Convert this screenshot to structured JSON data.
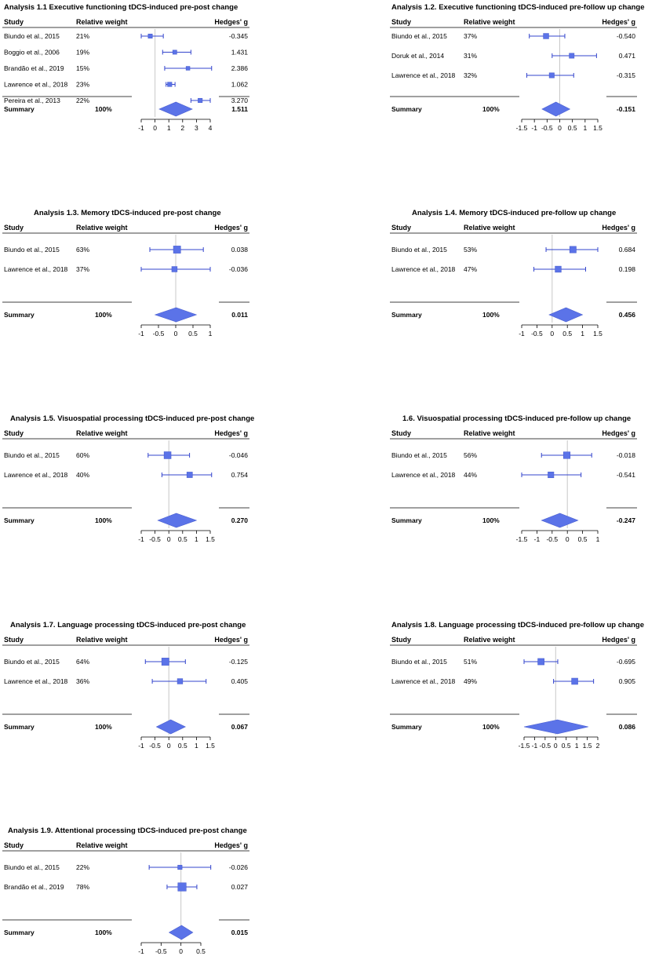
{
  "figure": {
    "headers": {
      "study": "Study",
      "weight": "Relative weight",
      "effect": "Hedges' g"
    },
    "summary_label": "Summary",
    "summary_weight": "100%",
    "colors": {
      "marker": "#5b73e8",
      "marker_edge": "#4a5fd0",
      "line": "#3344cc",
      "ref_line": "#c8c8c8",
      "rule": "#000000"
    }
  },
  "chart_data": [
    {
      "type": "forest",
      "title": "Analysis 1.1 Executive functioning tDCS-induced pre-post change",
      "studies": [
        {
          "label": "Biundo et al., 2015",
          "weight": "21%",
          "g_text": "-0.345",
          "g": -0.345,
          "ci": [
            -1.0,
            0.6
          ]
        },
        {
          "label": "Boggio et al., 2006",
          "weight": "19%",
          "g_text": "1.431",
          "g": 1.431,
          "ci": [
            0.55,
            2.6
          ]
        },
        {
          "label": "Brandão et al., 2019",
          "weight": "15%",
          "g_text": "2.386",
          "g": 2.386,
          "ci": [
            0.7,
            4.1
          ]
        },
        {
          "label": "Lawrence et al., 2018",
          "weight": "23%",
          "g_text": "1.062",
          "g": 1.062,
          "ci": [
            0.8,
            1.45
          ]
        },
        {
          "label": "Pereira et al., 2013",
          "weight": "22%",
          "g_text": "3.270",
          "g": 3.27,
          "ci": [
            2.6,
            4.0
          ]
        }
      ],
      "summary": {
        "g_text": "1.511",
        "g": 1.511,
        "ci": [
          0.3,
          2.7
        ]
      },
      "xlim": [
        -1,
        4
      ],
      "ticks": [
        "-1",
        "0",
        "1",
        "2",
        "3",
        "4"
      ],
      "tick_values": [
        -1,
        0,
        1,
        2,
        3,
        4
      ]
    },
    {
      "type": "forest",
      "title": "Analysis 1.2. Executive functioning tDCS-induced pre-follow up change",
      "studies": [
        {
          "label": "Biundo et al., 2015",
          "weight": "37%",
          "g_text": "-0.540",
          "g": -0.54,
          "ci": [
            -1.2,
            0.2
          ]
        },
        {
          "label": "Doruk et al., 2014",
          "weight": "31%",
          "g_text": "0.471",
          "g": 0.471,
          "ci": [
            -0.3,
            1.45
          ]
        },
        {
          "label": "Lawrence et al., 2018",
          "weight": "32%",
          "g_text": "-0.315",
          "g": -0.315,
          "ci": [
            -1.3,
            0.55
          ]
        }
      ],
      "summary": {
        "g_text": "-0.151",
        "g": -0.151,
        "ci": [
          -0.7,
          0.4
        ]
      },
      "xlim": [
        -1.5,
        1.5
      ],
      "ticks": [
        "-1.5",
        "-1",
        "-0.5",
        "0",
        "0.5",
        "1",
        "1.5"
      ],
      "tick_values": [
        -1.5,
        -1,
        -0.5,
        0,
        0.5,
        1,
        1.5
      ]
    },
    {
      "type": "forest",
      "title": "Analysis 1.3. Memory tDCS-induced pre-post change",
      "studies": [
        {
          "label": "Biundo et al., 2015",
          "weight": "63%",
          "g_text": "0.038",
          "g": 0.038,
          "ci": [
            -0.75,
            0.8
          ]
        },
        {
          "label": "Lawrence et al., 2018",
          "weight": "37%",
          "g_text": "-0.036",
          "g": -0.036,
          "ci": [
            -1.0,
            1.0
          ]
        }
      ],
      "summary": {
        "g_text": "0.011",
        "g": 0.011,
        "ci": [
          -0.6,
          0.6
        ]
      },
      "xlim": [
        -1,
        1
      ],
      "ticks": [
        "-1",
        "-0.5",
        "0",
        "0.5",
        "1"
      ],
      "tick_values": [
        -1,
        -0.5,
        0,
        0.5,
        1
      ]
    },
    {
      "type": "forest",
      "title": "Analysis 1.4. Memory tDCS-induced pre-follow up change",
      "studies": [
        {
          "label": "Biundo et al., 2015",
          "weight": "53%",
          "g_text": "0.684",
          "g": 0.684,
          "ci": [
            -0.2,
            1.5
          ]
        },
        {
          "label": "Lawrence et al., 2018",
          "weight": "47%",
          "g_text": "0.198",
          "g": 0.198,
          "ci": [
            -0.6,
            1.1
          ]
        }
      ],
      "summary": {
        "g_text": "0.456",
        "g": 0.456,
        "ci": [
          -0.1,
          1.0
        ]
      },
      "xlim": [
        -1,
        1.5
      ],
      "ticks": [
        "-1",
        "-0.5",
        "0",
        "0.5",
        "1",
        "1.5"
      ],
      "tick_values": [
        -1,
        -0.5,
        0,
        0.5,
        1,
        1.5
      ]
    },
    {
      "type": "forest",
      "title": "Analysis 1.5. Visuospatial processing tDCS-induced pre-post change",
      "studies": [
        {
          "label": "Biundo et al., 2015",
          "weight": "60%",
          "g_text": "-0.046",
          "g": -0.046,
          "ci": [
            -0.75,
            0.75
          ]
        },
        {
          "label": "Lawrence et al., 2018",
          "weight": "40%",
          "g_text": "0.754",
          "g": 0.754,
          "ci": [
            -0.25,
            1.55
          ]
        }
      ],
      "summary": {
        "g_text": "0.270",
        "g": 0.27,
        "ci": [
          -0.4,
          1.0
        ]
      },
      "xlim": [
        -1,
        1.5
      ],
      "ticks": [
        "-1",
        "-0.5",
        "0",
        "0.5",
        "1",
        "1.5"
      ],
      "tick_values": [
        -1,
        -0.5,
        0,
        0.5,
        1,
        1.5
      ]
    },
    {
      "type": "forest",
      "title": "1.6. Visuospatial processing tDCS-induced pre-follow up change",
      "studies": [
        {
          "label": "Biundo et al., 2015",
          "weight": "56%",
          "g_text": "-0.018",
          "g": -0.018,
          "ci": [
            -0.85,
            0.8
          ]
        },
        {
          "label": "Lawrence et al., 2018",
          "weight": "44%",
          "g_text": "-0.541",
          "g": -0.541,
          "ci": [
            -1.5,
            0.45
          ]
        }
      ],
      "summary": {
        "g_text": "-0.247",
        "g": -0.247,
        "ci": [
          -0.85,
          0.35
        ]
      },
      "xlim": [
        -1.5,
        1
      ],
      "ticks": [
        "-1.5",
        "-1",
        "-0.5",
        "0",
        "0.5",
        "1"
      ],
      "tick_values": [
        -1.5,
        -1,
        -0.5,
        0,
        0.5,
        1
      ]
    },
    {
      "type": "forest",
      "title": "Analysis 1.7. Language processing tDCS-induced pre-post change",
      "studies": [
        {
          "label": "Biundo et al., 2015",
          "weight": "64%",
          "g_text": "-0.125",
          "g": -0.125,
          "ci": [
            -0.85,
            0.6
          ]
        },
        {
          "label": "Lawrence et al., 2018",
          "weight": "36%",
          "g_text": "0.405",
          "g": 0.405,
          "ci": [
            -0.6,
            1.35
          ]
        }
      ],
      "summary": {
        "g_text": "0.067",
        "g": 0.067,
        "ci": [
          -0.45,
          0.6
        ]
      },
      "xlim": [
        -1,
        1.5
      ],
      "ticks": [
        "-1",
        "-0.5",
        "0",
        "0.5",
        "1",
        "1.5"
      ],
      "tick_values": [
        -1,
        -0.5,
        0,
        0.5,
        1,
        1.5
      ]
    },
    {
      "type": "forest",
      "title": "Analysis 1.8. Language processing tDCS-induced pre-follow up change",
      "studies": [
        {
          "label": "Biundo et al., 2015",
          "weight": "51%",
          "g_text": "-0.695",
          "g": -0.695,
          "ci": [
            -1.5,
            0.1
          ]
        },
        {
          "label": "Lawrence et al., 2018",
          "weight": "49%",
          "g_text": "0.905",
          "g": 0.905,
          "ci": [
            -0.1,
            1.8
          ]
        }
      ],
      "summary": {
        "g_text": "0.086",
        "g": 0.086,
        "ci": [
          -1.5,
          1.55
        ]
      },
      "xlim": [
        -1.5,
        2
      ],
      "ticks": [
        "-1.5",
        "-1",
        "-0.5",
        "0",
        "0.5",
        "1",
        "1.5",
        "2"
      ],
      "tick_values": [
        -1.5,
        -1,
        -0.5,
        0,
        0.5,
        1,
        1.5,
        2
      ]
    },
    {
      "type": "forest",
      "title": "Analysis 1.9. Attentional processing tDCS-induced pre-post change",
      "studies": [
        {
          "label": "Biundo et al., 2015",
          "weight": "22%",
          "g_text": "-0.026",
          "g": -0.026,
          "ci": [
            -0.8,
            0.75
          ]
        },
        {
          "label": "Brandão et al., 2019",
          "weight": "78%",
          "g_text": "0.027",
          "g": 0.027,
          "ci": [
            -0.35,
            0.4
          ]
        }
      ],
      "summary": {
        "g_text": "0.015",
        "g": 0.015,
        "ci": [
          -0.3,
          0.3
        ]
      },
      "xlim": [
        -1,
        0.5
      ],
      "ticks": [
        "-1",
        "-0.5",
        "0",
        "0.5"
      ],
      "tick_values": [
        -1,
        -0.5,
        0,
        0.5
      ]
    }
  ]
}
